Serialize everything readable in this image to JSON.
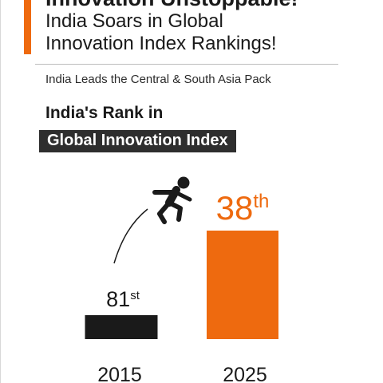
{
  "headline": {
    "line1": "Innovation Unstoppable!",
    "line2": "India Soars in Global",
    "line3": "Innovation Index Rankings!"
  },
  "subheadline": "India Leads the Central & South Asia Pack",
  "rank_title": "India's Rank in",
  "rank_tag": "Global Innovation Index",
  "colors": {
    "accent": "#ee6a0f",
    "dark": "#1a1a1a",
    "tag_bg": "#2e2e2e"
  },
  "icons": [
    "jumping-person-icon",
    "jump-arc-icon"
  ],
  "chart_data": {
    "type": "bar",
    "categories": [
      "2015",
      "2025"
    ],
    "values": [
      81,
      38
    ],
    "data_labels": [
      {
        "main": "81",
        "suffix": "st"
      },
      {
        "main": "38",
        "suffix": "th"
      }
    ],
    "bar_colors": [
      "#1a1a1a",
      "#ee6a0f"
    ],
    "title": "India's Rank in Global Innovation Index",
    "xlabel": "",
    "ylabel": "",
    "grid": false,
    "legend": "none"
  }
}
